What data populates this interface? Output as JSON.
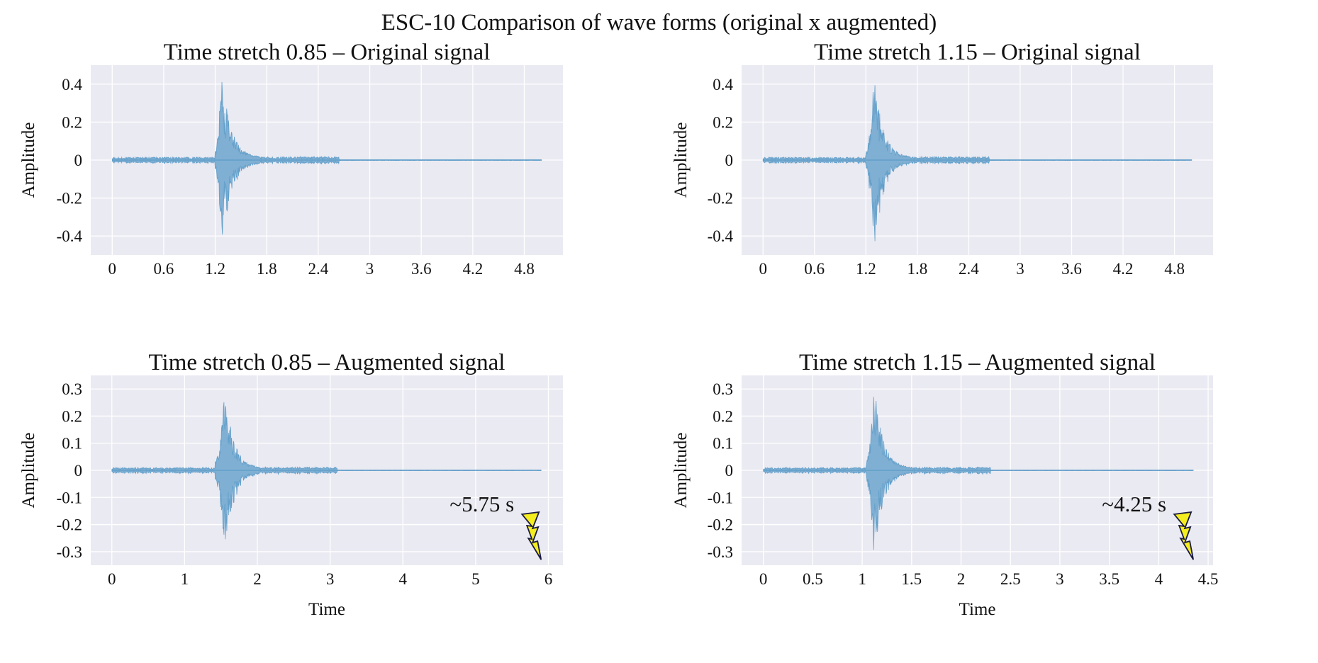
{
  "suptitle": "ESC-10 Comparison of wave forms (original x augmented)",
  "chart_data": [
    {
      "type": "line",
      "title": "Time stretch 0.85 – Original signal",
      "xlabel": "",
      "ylabel": "Amplitude",
      "xlim": [
        -0.25,
        5.25
      ],
      "ylim": [
        -0.5,
        0.5
      ],
      "xticks": [
        0,
        0.6,
        1.2,
        1.8,
        2.4,
        3,
        3.6,
        4.2,
        4.8
      ],
      "xtick_labels": [
        "0",
        "0.6",
        "1.2",
        "1.8",
        "2.4",
        "3",
        "3.6",
        "4.2",
        "4.8"
      ],
      "yticks": [
        0.4,
        0.2,
        0,
        -0.2,
        -0.4
      ],
      "ytick_labels": [
        "0.4",
        "0.2",
        "0",
        "-0.2",
        "-0.4"
      ],
      "grid": true,
      "color": "#5b9bc8",
      "duration": 5.0,
      "onset": 1.2,
      "peak": 1.27,
      "peak_amp": 0.47,
      "decay_end": 1.72,
      "noise_end": 2.64,
      "noise_amp": 0.012,
      "annotation": ""
    },
    {
      "type": "line",
      "title": "Time stretch 1.15 – Original signal",
      "xlabel": "",
      "ylabel": "Amplitude",
      "xlim": [
        -0.25,
        5.25
      ],
      "ylim": [
        -0.5,
        0.5
      ],
      "xticks": [
        0,
        0.6,
        1.2,
        1.8,
        2.4,
        3,
        3.6,
        4.2,
        4.8
      ],
      "xtick_labels": [
        "0",
        "0.6",
        "1.2",
        "1.8",
        "2.4",
        "3",
        "3.6",
        "4.2",
        "4.8"
      ],
      "yticks": [
        0.4,
        0.2,
        0,
        -0.2,
        -0.4
      ],
      "ytick_labels": [
        "0.4",
        "0.2",
        "0",
        "-0.2",
        "-0.4"
      ],
      "grid": true,
      "color": "#5b9bc8",
      "duration": 5.0,
      "onset": 1.2,
      "peak": 1.29,
      "peak_amp": 0.47,
      "decay_end": 1.72,
      "noise_end": 2.64,
      "noise_amp": 0.012,
      "annotation": ""
    },
    {
      "type": "line",
      "title": "Time stretch 0.85 – Augmented signal",
      "xlabel": "Time",
      "ylabel": "Amplitude",
      "xlim": [
        -0.29,
        6.2
      ],
      "ylim": [
        -0.35,
        0.35
      ],
      "xticks": [
        0,
        1,
        2,
        3,
        4,
        5,
        6
      ],
      "xtick_labels": [
        "0",
        "1",
        "2",
        "3",
        "4",
        "5",
        "6"
      ],
      "yticks": [
        0.3,
        0.2,
        0.1,
        0,
        -0.1,
        -0.2,
        -0.3
      ],
      "ytick_labels": [
        "0.3",
        "0.2",
        "0.1",
        "0",
        "-0.1",
        "-0.2",
        "-0.3"
      ],
      "grid": true,
      "color": "#5b9bc8",
      "duration": 5.9,
      "onset": 1.42,
      "peak": 1.55,
      "peak_amp": 0.32,
      "decay_end": 2.03,
      "noise_end": 3.1,
      "noise_amp": 0.008,
      "annotation": "~5.75 s"
    },
    {
      "type": "line",
      "title": "Time stretch 1.15 – Augmented signal",
      "xlabel": "Time",
      "ylabel": "Amplitude",
      "xlim": [
        -0.22,
        4.55
      ],
      "ylim": [
        -0.35,
        0.35
      ],
      "xticks": [
        0,
        0.5,
        1,
        1.5,
        2,
        2.5,
        3,
        3.5,
        4,
        4.5
      ],
      "xtick_labels": [
        "0",
        "0.5",
        "1",
        "1.5",
        "2",
        "2.5",
        "3",
        "3.5",
        "4",
        "4.5"
      ],
      "yticks": [
        0.3,
        0.2,
        0.1,
        0,
        -0.1,
        -0.2,
        -0.3
      ],
      "ytick_labels": [
        "0.3",
        "0.2",
        "0.1",
        "0",
        "-0.1",
        "-0.2",
        "-0.3"
      ],
      "grid": true,
      "color": "#5b9bc8",
      "duration": 4.35,
      "onset": 1.04,
      "peak": 1.12,
      "peak_amp": 0.32,
      "decay_end": 1.48,
      "noise_end": 2.3,
      "noise_amp": 0.008,
      "annotation": "~4.25 s"
    }
  ]
}
